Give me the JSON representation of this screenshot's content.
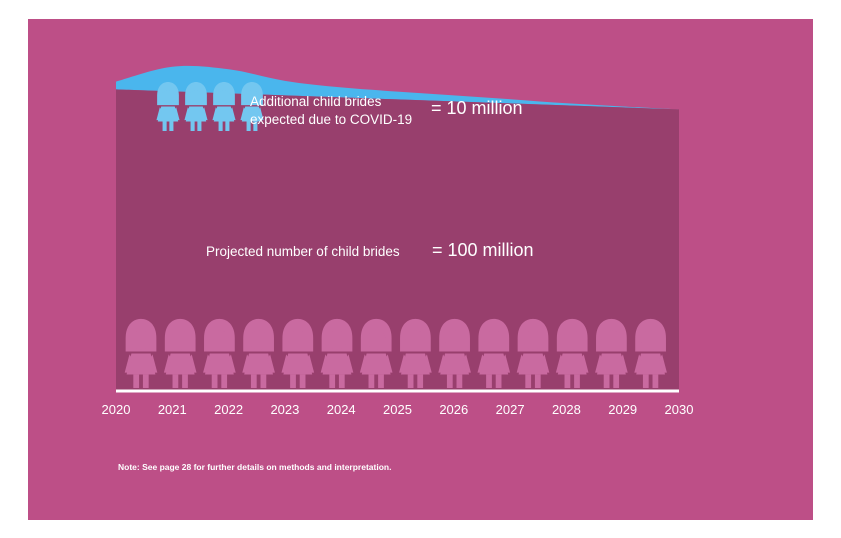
{
  "chart_data": {
    "type": "area",
    "x": [
      2020,
      2021,
      2022,
      2023,
      2024,
      2025,
      2026,
      2027,
      2028,
      2029,
      2030
    ],
    "tick_labels": [
      "2020",
      "2021",
      "2022",
      "2023",
      "2024",
      "2025",
      "2026",
      "2027",
      "2028",
      "2029",
      "2030"
    ],
    "series": [
      {
        "name": "Projected number of child brides",
        "values": [
          100,
          100,
          100,
          100,
          100,
          100,
          100,
          100,
          100,
          100,
          100
        ],
        "color": "#983f6d"
      },
      {
        "name": "Additional child brides expected due to COVID-19",
        "values": [
          2.6,
          8.2,
          8.0,
          4.8,
          3.3,
          2.6,
          2.0,
          1.4,
          0.7,
          0.3,
          0.0
        ],
        "color": "#4ab6ed"
      }
    ],
    "annotations": {
      "covid_label_line1": "Additional child brides",
      "covid_label_line2": "expected due to COVID-19",
      "covid_value": "= 10 million",
      "projected_label": "Projected number of child brides",
      "projected_value": "= 100 million"
    },
    "ylim": [
      0,
      125
    ],
    "xlabel": "",
    "ylabel": "",
    "grid": false
  },
  "note": "Note: See page 28 for further details on methods and interpretation.",
  "colors": {
    "background": "#bd4f87",
    "projected_area": "#983f6d",
    "covid_area": "#4ab6ed",
    "figure_icon": "#c96aa0",
    "covid_figure_icon": "#73c7f0",
    "axis": "#ffffff"
  },
  "icons": {
    "projected_figures": {
      "name": "girl-figure-icon",
      "count": 14
    },
    "covid_figures": {
      "name": "girl-figure-icon",
      "count": 4
    }
  }
}
